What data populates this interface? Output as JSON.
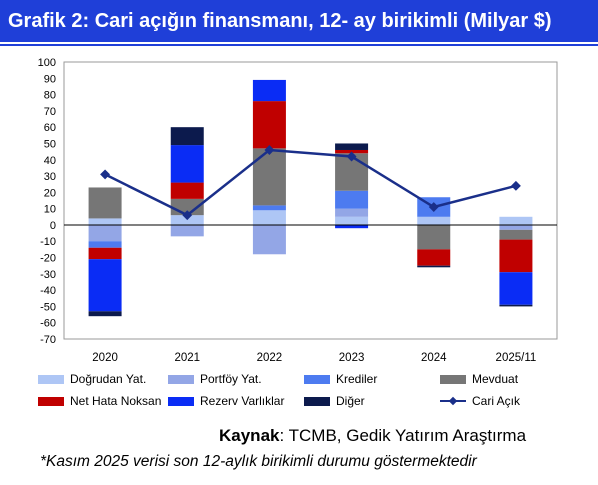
{
  "header": {
    "title": "Grafik 2: Cari açığın finansmanı, 12- ay birikimli (Milyar $)"
  },
  "chart_data": {
    "type": "bar",
    "stacked": true,
    "categories": [
      "2020",
      "2021",
      "2022",
      "2023",
      "2024",
      "2025/11"
    ],
    "ylim": [
      -70,
      100
    ],
    "yticks": [
      100,
      90,
      80,
      70,
      60,
      50,
      40,
      30,
      20,
      10,
      0,
      -10,
      -20,
      -30,
      -40,
      -50,
      -60,
      -70
    ],
    "grid": false,
    "legend_position": "bottom",
    "series": [
      {
        "name": "Doğrudan Yat.",
        "color": "#aec6f5",
        "values": [
          4,
          6,
          9,
          5,
          5,
          5
        ]
      },
      {
        "name": "Portföy Yat.",
        "color": "#93a6e6",
        "values": [
          -10,
          -7,
          -18,
          5,
          0,
          -3
        ]
      },
      {
        "name": "Krediler",
        "color": "#4d7bf0",
        "values": [
          -4,
          0,
          3,
          11,
          12,
          0
        ]
      },
      {
        "name": "Mevduat",
        "color": "#767676",
        "values": [
          19,
          10,
          35,
          23,
          -15,
          -6
        ]
      },
      {
        "name": "Net Hata Noksan",
        "color": "#c00000",
        "values": [
          -7,
          10,
          29,
          2,
          -10,
          -20
        ]
      },
      {
        "name": "Rezerv Varlıklar",
        "color": "#0a2cf5",
        "values": [
          -32,
          23,
          13,
          -2,
          0,
          -20
        ]
      },
      {
        "name": "Diğer",
        "color": "#0c1a4d",
        "values": [
          -3,
          11,
          0,
          4,
          -1,
          -1
        ]
      }
    ],
    "line": {
      "name": "Cari Açık",
      "color": "#1a2f8a",
      "values": [
        31,
        6,
        46,
        42,
        11,
        24
      ]
    }
  },
  "source": {
    "label": "Kaynak",
    "text": ": TCMB, Gedik Yatırım Araştırma"
  },
  "note": "*Kasım 2025 verisi son 12-aylık birikimli durumu göstermektedir"
}
